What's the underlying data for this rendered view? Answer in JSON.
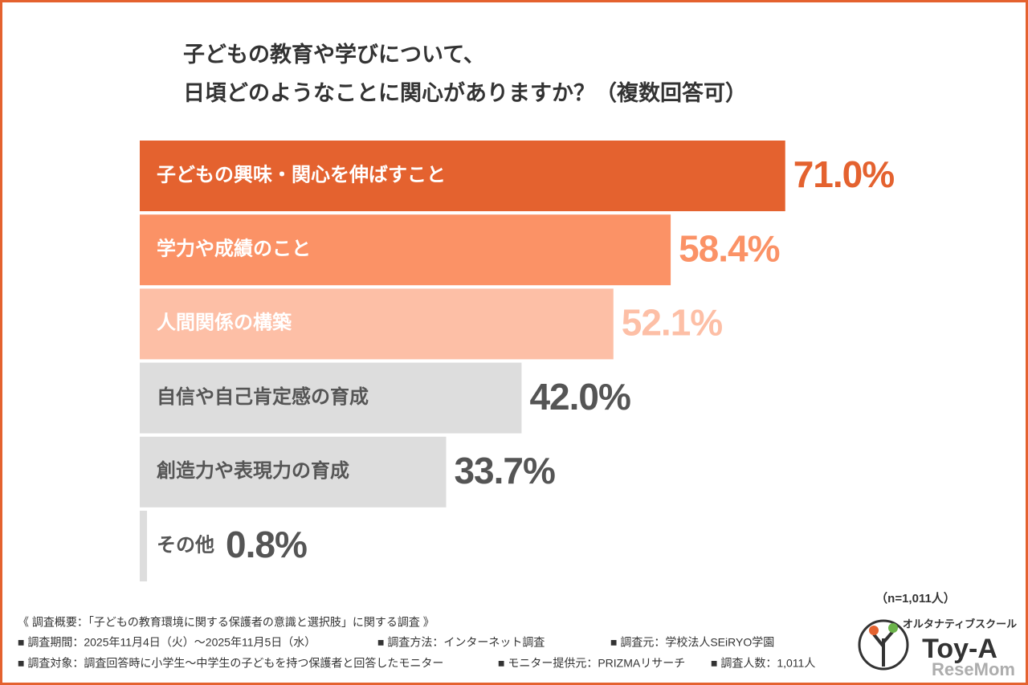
{
  "chart_data": {
    "type": "bar",
    "title": [
      "子どもの教育や学びについて、",
      "日頃どのようなことに関心がありますか？（複数回答可）"
    ],
    "categories": [
      "子どもの興味・関心を伸ばすこと",
      "学力や成績のこと",
      "人間関係の構築",
      "自信や自己肯定感の育成",
      "創造力や表現力の育成",
      "その他"
    ],
    "values": [
      71.0,
      58.4,
      52.1,
      42.0,
      33.7,
      0.8
    ],
    "value_labels": [
      "71.0%",
      "58.4%",
      "52.1%",
      "42.0%",
      "33.7%",
      "0.8%"
    ],
    "colors": [
      "#e4622f",
      "#fb9266",
      "#fdbfa6",
      "#dddddd",
      "#dddddd",
      "#dddddd"
    ],
    "text_colors": [
      "#ffffff",
      "#ffffff",
      "#ffffff",
      "#555555",
      "#555555",
      "#555555"
    ],
    "value_label_colors": [
      "#e4622f",
      "#fb9266",
      "#fdbfa6",
      "#555555",
      "#555555",
      "#555555"
    ],
    "sample_size": "（n=1,011人）"
  },
  "notes": [
    "《 調査概要：「子どもの教育環境に関する保護者の意識と選択肢」に関する調査 》",
    [
      "■ 調査期間：2025年11月4日（火）〜2025年11月5日（水）",
      "■ 調査方法：インターネット調査",
      "■ 調査元：学校法人SEiRYO学園"
    ],
    [
      "■ 調査対象：調査回答時に小学生〜中学生の子どもを持つ保護者と回答したモニター",
      "■ モニター提供元：PRIZMAリサーチ",
      "■ 調査人数：1,011人"
    ]
  ],
  "logo": {
    "tagline": "オルタナティブスクール",
    "name": "Toy-A",
    "watermark": "ReseMom"
  }
}
